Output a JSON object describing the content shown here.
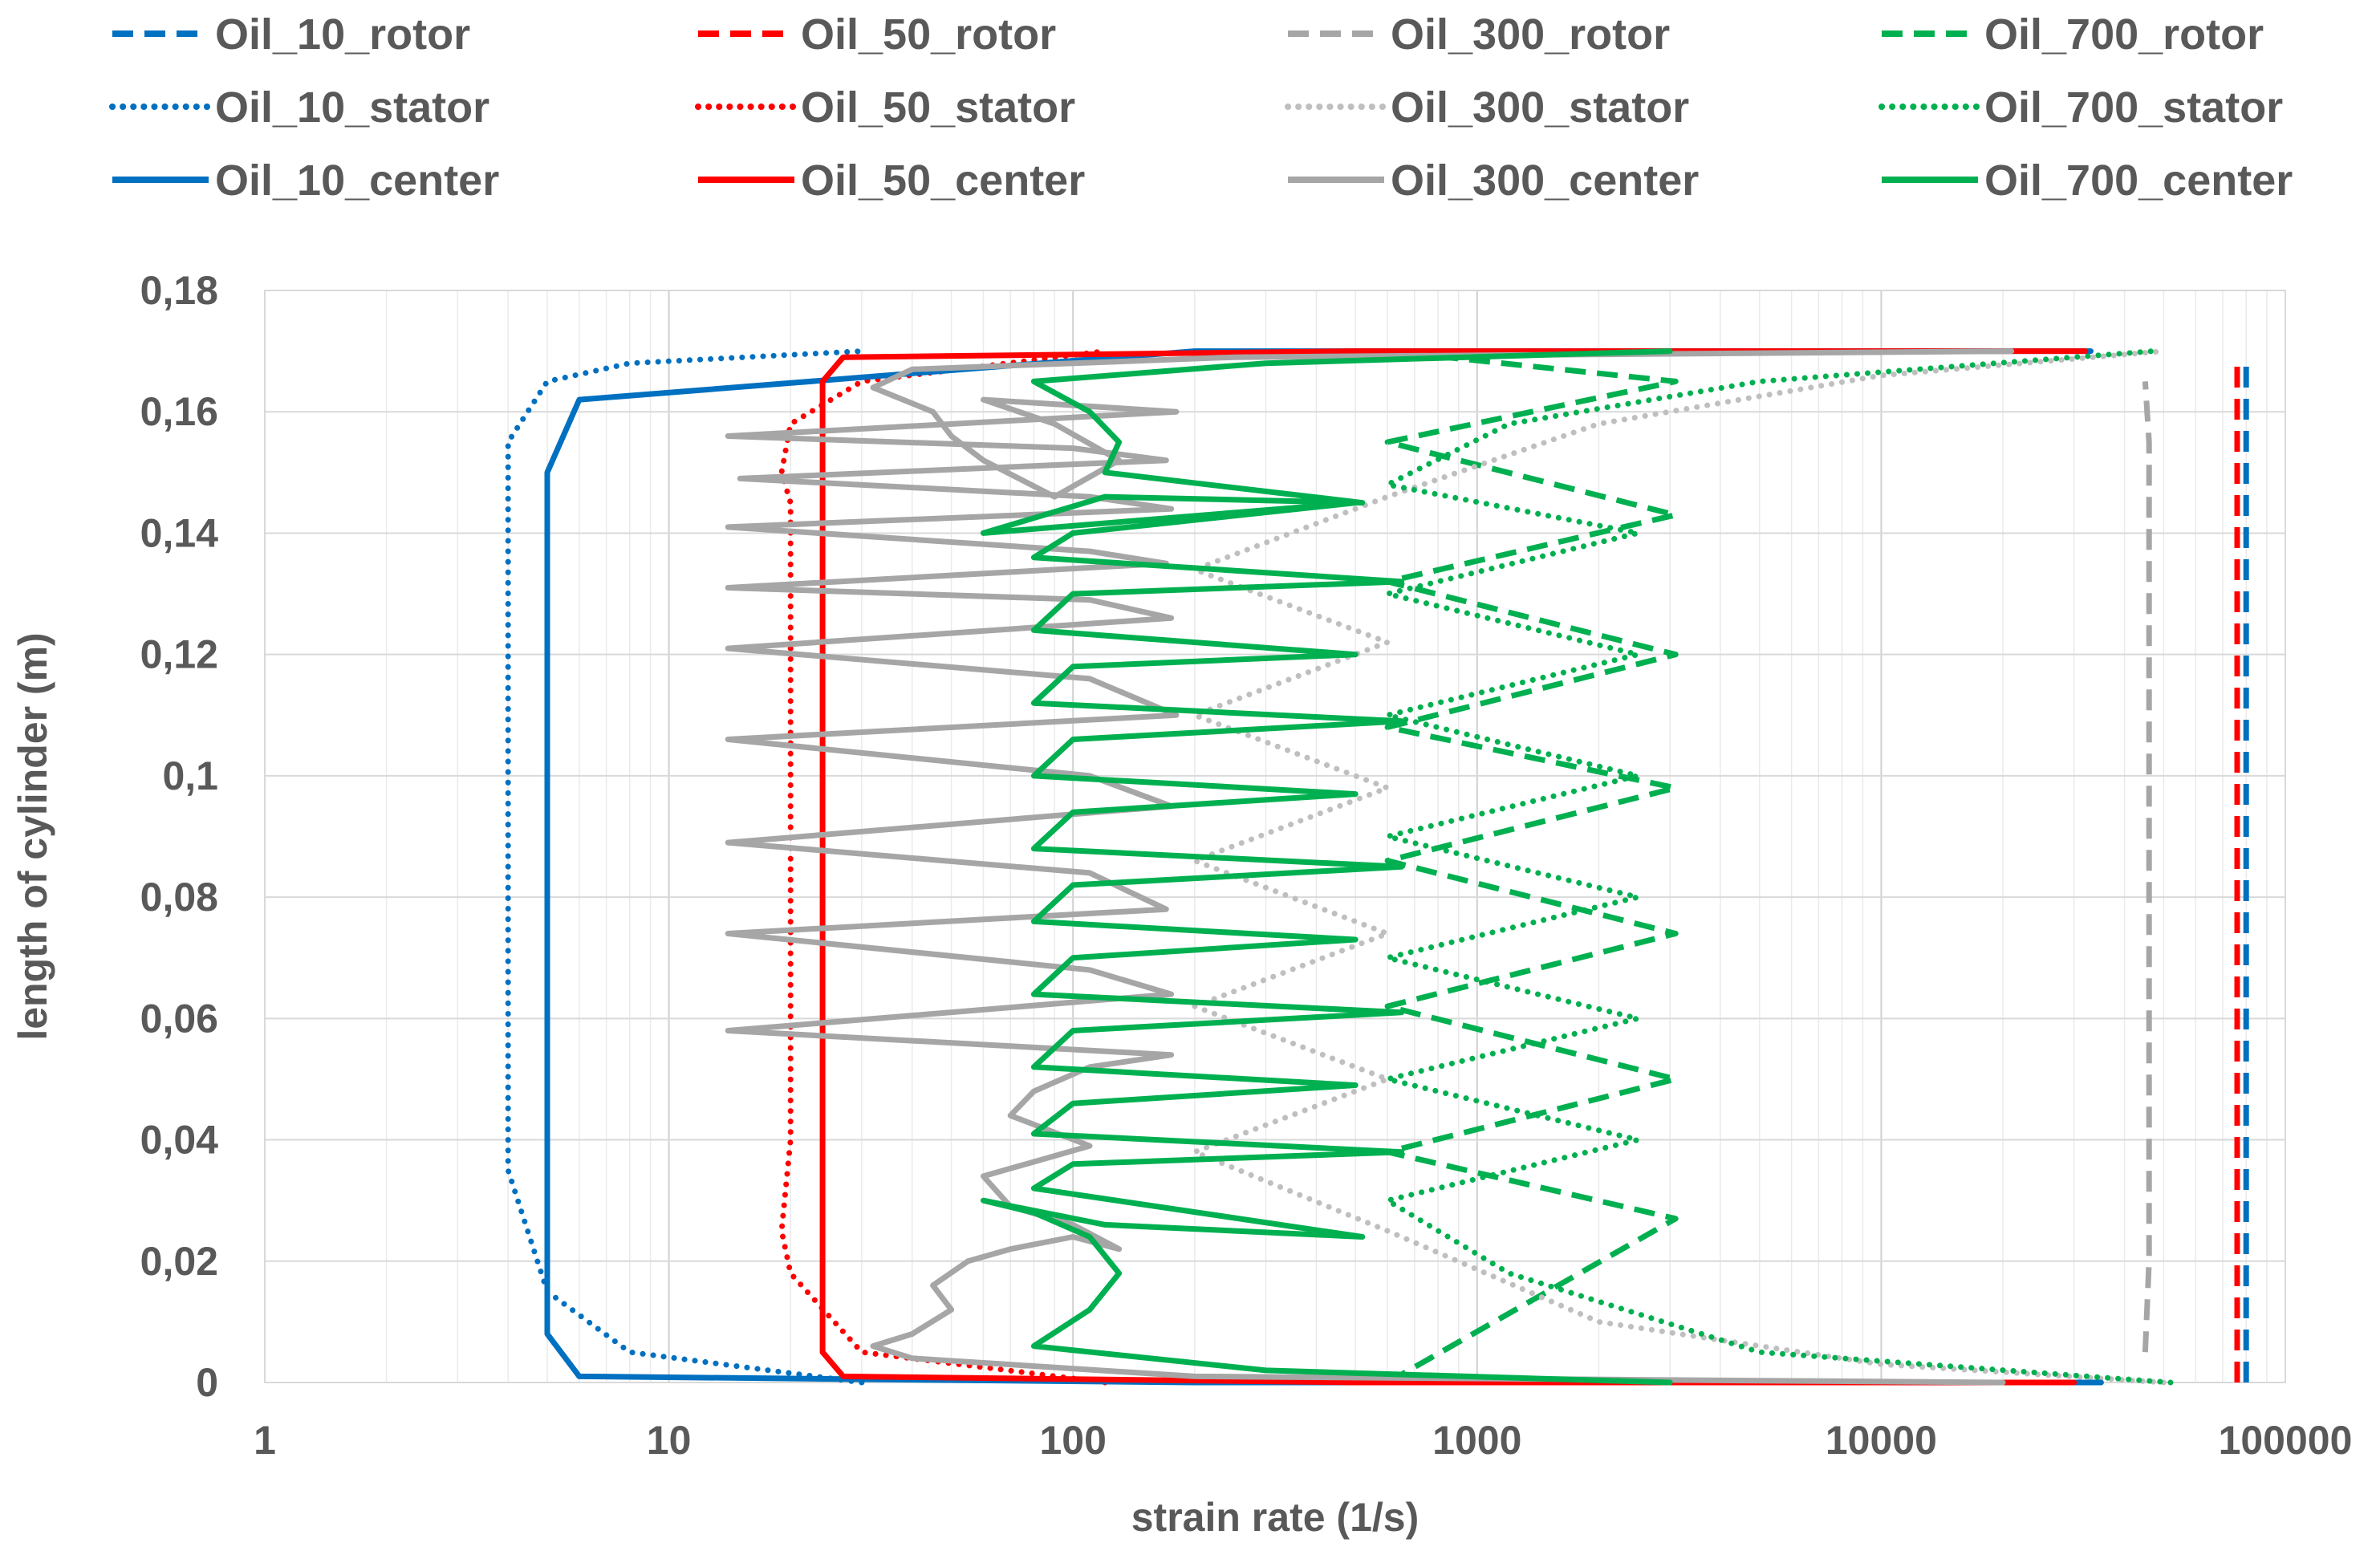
{
  "chart_data": {
    "type": "line",
    "title": "",
    "xlabel": "strain rate (1/s)",
    "ylabel": "length of cylinder (m)",
    "xscale": "log",
    "xlim": [
      1,
      100000
    ],
    "ylim": [
      0,
      0.18
    ],
    "grid": true,
    "legend_position": "top",
    "x_tick_labels": [
      "1",
      "10",
      "100",
      "1000",
      "10000",
      "100000"
    ],
    "y_tick_labels": [
      "0",
      "0,02",
      "0,04",
      "0,06",
      "0,08",
      "0,1",
      "0,12",
      "0,14",
      "0,16",
      "0,18"
    ],
    "series": [
      {
        "name": "Oil_10_rotor",
        "color": "#0070C0",
        "dash": "dashed",
        "x": [
          80000,
          80000,
          80000
        ],
        "y": [
          0,
          0.085,
          0.168
        ]
      },
      {
        "name": "Oil_50_rotor",
        "color": "#FF0000",
        "dash": "dashed",
        "x": [
          76000,
          76000,
          76000
        ],
        "y": [
          0,
          0.085,
          0.168
        ]
      },
      {
        "name": "Oil_300_rotor",
        "color": "#A6A6A6",
        "dash": "dashed",
        "x": [
          45000,
          46000,
          46000,
          46000,
          45000
        ],
        "y": [
          0.005,
          0.02,
          0.085,
          0.155,
          0.165
        ]
      },
      {
        "name": "Oil_700_rotor",
        "color": "#00B050",
        "dash": "dashed",
        "x": [
          600,
          3100,
          600,
          3100,
          600,
          3100,
          600,
          3100,
          600,
          3100,
          600,
          3100,
          600,
          3100,
          600
        ],
        "y": [
          0,
          0.027,
          0.038,
          0.05,
          0.062,
          0.074,
          0.086,
          0.098,
          0.108,
          0.12,
          0.132,
          0.143,
          0.155,
          0.165,
          0.17
        ]
      },
      {
        "name": "Oil_10_stator",
        "color": "#0070C0",
        "dash": "dotted",
        "x": [
          30,
          8,
          5,
          4,
          4,
          4,
          4,
          5,
          8,
          30
        ],
        "y": [
          0,
          0.005,
          0.015,
          0.035,
          0.085,
          0.135,
          0.155,
          0.165,
          0.168,
          0.17
        ]
      },
      {
        "name": "Oil_50_stator",
        "color": "#FF0000",
        "dash": "dotted",
        "x": [
          120,
          30,
          20,
          19,
          20,
          20,
          20,
          20,
          19,
          20,
          30,
          120
        ],
        "y": [
          0,
          0.005,
          0.018,
          0.025,
          0.04,
          0.085,
          0.13,
          0.145,
          0.15,
          0.158,
          0.165,
          0.17
        ]
      },
      {
        "name": "Oil_300_stator",
        "color": "#BFBFBF",
        "dash": "dotted",
        "x": [
          50000,
          10000,
          2000,
          600,
          200,
          600,
          200,
          600,
          200,
          600,
          200,
          600,
          200,
          600,
          2000,
          10000,
          50000
        ],
        "y": [
          0,
          0.003,
          0.01,
          0.025,
          0.038,
          0.05,
          0.062,
          0.074,
          0.086,
          0.098,
          0.11,
          0.122,
          0.134,
          0.146,
          0.158,
          0.166,
          0.17
        ]
      },
      {
        "name": "Oil_700_stator",
        "color": "#00B050",
        "dash": "dotted",
        "x": [
          52000,
          5000,
          1200,
          600,
          2500,
          600,
          2500,
          600,
          2500,
          600,
          2500,
          600,
          2500,
          600,
          2500,
          600,
          1200,
          5000,
          47000
        ],
        "y": [
          0,
          0.005,
          0.018,
          0.03,
          0.04,
          0.05,
          0.06,
          0.07,
          0.08,
          0.09,
          0.1,
          0.11,
          0.12,
          0.13,
          0.14,
          0.148,
          0.158,
          0.165,
          0.17
        ]
      },
      {
        "name": "Oil_10_center",
        "color": "#0070C0",
        "dash": "solid",
        "x": [
          35000,
          200,
          6,
          5,
          5,
          5,
          5,
          6,
          200,
          33000
        ],
        "y": [
          0,
          0,
          0.001,
          0.008,
          0.02,
          0.085,
          0.15,
          0.162,
          0.17,
          0.17
        ]
      },
      {
        "name": "Oil_50_center",
        "color": "#FF0000",
        "dash": "solid",
        "x": [
          30000,
          500,
          27,
          24,
          24,
          24,
          24,
          24,
          27,
          500,
          32000
        ],
        "y": [
          0,
          0,
          0.001,
          0.005,
          0.02,
          0.085,
          0.15,
          0.165,
          0.169,
          0.17,
          0.17
        ]
      },
      {
        "name": "Oil_300_center",
        "color": "#A6A6A6",
        "dash": "solid",
        "x": [
          20000,
          200,
          40,
          32,
          40,
          50,
          45,
          55,
          70,
          100,
          130,
          100,
          70,
          60,
          110,
          70,
          80,
          110,
          175,
          14,
          175,
          110,
          14,
          170,
          110,
          14,
          175,
          110,
          14,
          180,
          110,
          14,
          175,
          110,
          14,
          170,
          110,
          14,
          175,
          110,
          15,
          170,
          100,
          14,
          180,
          60,
          90,
          130,
          90,
          60,
          50,
          45,
          32,
          40,
          250,
          21000
        ],
        "y": [
          0,
          0.001,
          0.004,
          0.006,
          0.008,
          0.012,
          0.016,
          0.02,
          0.022,
          0.024,
          0.022,
          0.026,
          0.029,
          0.034,
          0.039,
          0.044,
          0.048,
          0.052,
          0.054,
          0.058,
          0.064,
          0.068,
          0.074,
          0.078,
          0.084,
          0.089,
          0.095,
          0.1,
          0.106,
          0.11,
          0.116,
          0.121,
          0.126,
          0.129,
          0.131,
          0.135,
          0.137,
          0.141,
          0.144,
          0.146,
          0.149,
          0.152,
          0.154,
          0.156,
          0.16,
          0.162,
          0.158,
          0.152,
          0.146,
          0.152,
          0.156,
          0.16,
          0.164,
          0.167,
          0.169,
          0.17
        ]
      },
      {
        "name": "Oil_700_center",
        "color": "#00B050",
        "dash": "solid",
        "x": [
          3000,
          300,
          80,
          110,
          130,
          110,
          80,
          60,
          120,
          520,
          80,
          100,
          650,
          80,
          100,
          500,
          80,
          100,
          650,
          80,
          100,
          500,
          80,
          100,
          650,
          80,
          100,
          500,
          80,
          100,
          650,
          80,
          100,
          500,
          80,
          100,
          650,
          80,
          100,
          500,
          60,
          120,
          520,
          120,
          130,
          110,
          80,
          300,
          3000
        ],
        "y": [
          0,
          0.002,
          0.006,
          0.012,
          0.018,
          0.024,
          0.028,
          0.03,
          0.026,
          0.024,
          0.032,
          0.036,
          0.038,
          0.041,
          0.046,
          0.049,
          0.052,
          0.058,
          0.061,
          0.064,
          0.07,
          0.073,
          0.076,
          0.082,
          0.085,
          0.088,
          0.094,
          0.097,
          0.1,
          0.106,
          0.109,
          0.112,
          0.118,
          0.12,
          0.124,
          0.13,
          0.132,
          0.136,
          0.14,
          0.145,
          0.14,
          0.146,
          0.145,
          0.15,
          0.155,
          0.16,
          0.165,
          0.168,
          0.17
        ]
      }
    ]
  }
}
